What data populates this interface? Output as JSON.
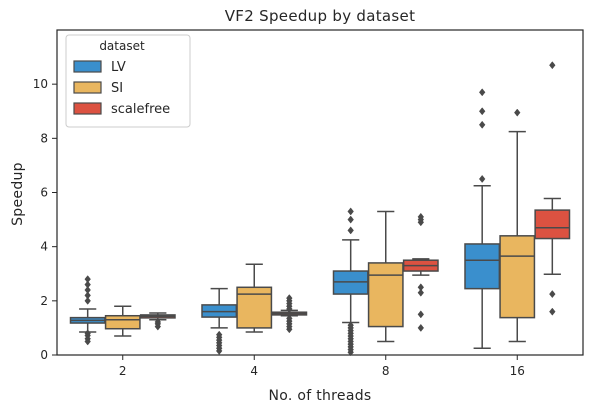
{
  "chart_data": {
    "type": "boxplot",
    "title": "VF2 Speedup by dataset",
    "xlabel": "No. of threads",
    "ylabel": "Speedup",
    "categories": [
      "2",
      "4",
      "8",
      "16"
    ],
    "ylim": [
      0,
      12
    ],
    "yticks": [
      0,
      2,
      4,
      6,
      8,
      10
    ],
    "grid": false,
    "legend": {
      "title": "dataset",
      "placement": "top-left"
    },
    "series": [
      {
        "name": "LV",
        "color": "#3a8fcd",
        "boxes": [
          {
            "whislo": 0.85,
            "q1": 1.18,
            "med": 1.28,
            "q3": 1.38,
            "whishi": 1.7,
            "fliers": [
              0.5,
              0.6,
              0.72,
              0.8,
              2.0,
              2.2,
              2.4,
              2.6,
              2.8
            ]
          },
          {
            "whislo": 1.0,
            "q1": 1.4,
            "med": 1.6,
            "q3": 1.85,
            "whishi": 2.45,
            "fliers": [
              0.15,
              0.25,
              0.35,
              0.45,
              0.55,
              0.65,
              0.75
            ]
          },
          {
            "whislo": 1.2,
            "q1": 2.25,
            "med": 2.7,
            "q3": 3.1,
            "whishi": 4.25,
            "fliers": [
              0.1,
              0.2,
              0.3,
              0.4,
              0.5,
              0.6,
              0.7,
              0.8,
              0.9,
              1.0,
              1.1,
              4.6,
              5.0,
              5.3
            ]
          },
          {
            "whislo": 0.25,
            "q1": 2.45,
            "med": 3.5,
            "q3": 4.1,
            "whishi": 6.25,
            "fliers": [
              6.5,
              8.5,
              9.0,
              9.7
            ]
          }
        ]
      },
      {
        "name": "SI",
        "color": "#e9b65f",
        "boxes": [
          {
            "whislo": 0.7,
            "q1": 0.97,
            "med": 1.3,
            "q3": 1.45,
            "whishi": 1.8,
            "fliers": []
          },
          {
            "whislo": 0.85,
            "q1": 1.0,
            "med": 2.25,
            "q3": 2.5,
            "whishi": 3.35,
            "fliers": []
          },
          {
            "whislo": 0.5,
            "q1": 1.05,
            "med": 2.95,
            "q3": 3.4,
            "whishi": 5.3,
            "fliers": []
          },
          {
            "whislo": 0.5,
            "q1": 1.38,
            "med": 3.65,
            "q3": 4.4,
            "whishi": 8.25,
            "fliers": [
              8.95
            ]
          }
        ]
      },
      {
        "name": "scalefree",
        "color": "#dc5241",
        "boxes": [
          {
            "whislo": 1.3,
            "q1": 1.37,
            "med": 1.43,
            "q3": 1.48,
            "whishi": 1.55,
            "fliers": [
              1.05,
              1.15,
              1.22
            ]
          },
          {
            "whislo": 1.45,
            "q1": 1.48,
            "med": 1.53,
            "q3": 1.58,
            "whishi": 1.65,
            "fliers": [
              0.95,
              1.05,
              1.15,
              1.25,
              1.35,
              1.7,
              1.8,
              1.9,
              2.0,
              2.1
            ]
          },
          {
            "whislo": 2.95,
            "q1": 3.1,
            "med": 3.3,
            "q3": 3.5,
            "whishi": 3.55,
            "fliers": [
              1.0,
              1.5,
              2.3,
              2.5,
              4.9,
              5.0,
              5.1
            ]
          },
          {
            "whislo": 2.98,
            "q1": 4.3,
            "med": 4.7,
            "q3": 5.35,
            "whishi": 5.78,
            "fliers": [
              1.6,
              2.25,
              10.7
            ]
          }
        ]
      }
    ]
  }
}
